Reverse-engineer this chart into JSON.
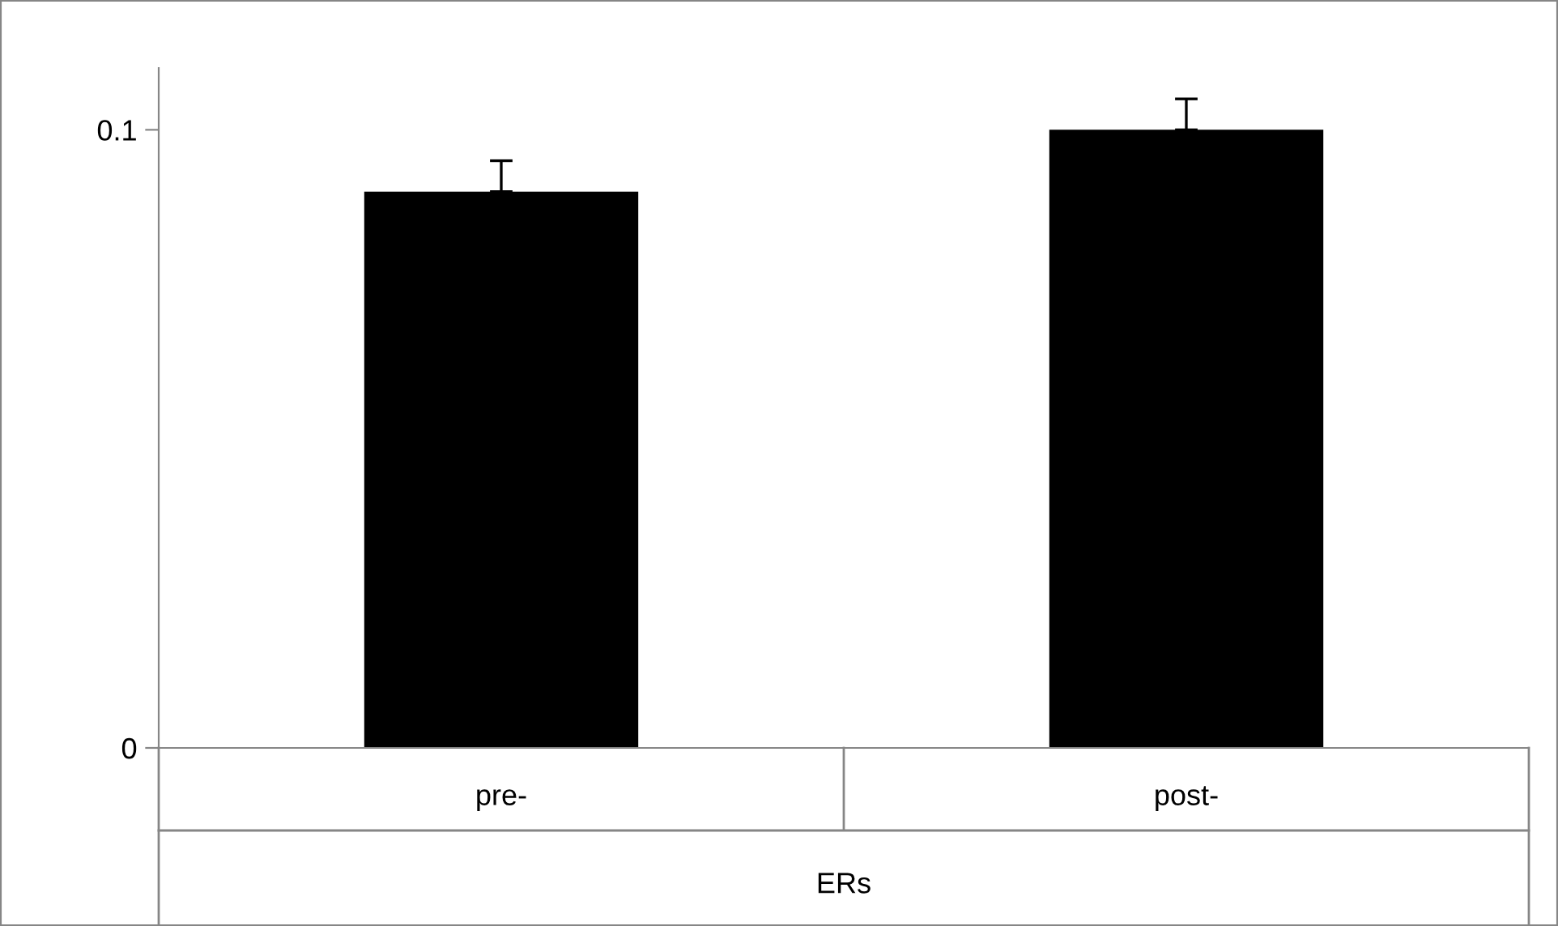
{
  "chart_data": {
    "type": "bar",
    "categories": [
      "pre-",
      "post-"
    ],
    "xlabel": "ERs",
    "values": [
      0.09,
      0.1
    ],
    "color": "#000000",
    "errors": [
      [
        0.09,
        0.095
      ],
      [
        0.1,
        0.105
      ]
    ],
    "ylim": [
      0,
      0.11
    ],
    "yticks": [
      0,
      0.1
    ],
    "grid": false,
    "legend": false
  }
}
